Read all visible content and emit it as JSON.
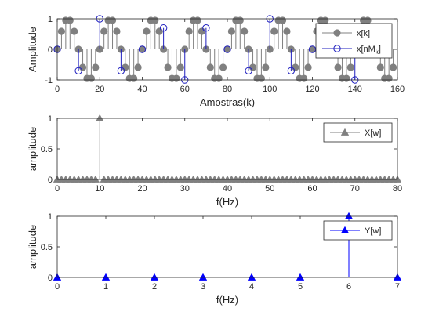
{
  "figure": {
    "background": "#ffffff",
    "axes_background": "#ffffff"
  },
  "chart_data": [
    {
      "type": "stem",
      "xlabel": "Amostras(k)",
      "ylabel": "Amplitude",
      "xlim": [
        0,
        160
      ],
      "ylim": [
        -1,
        1
      ],
      "xticks": [
        0,
        20,
        40,
        60,
        80,
        100,
        120,
        140,
        160
      ],
      "yticks": [
        -1,
        0,
        1
      ],
      "legend": {
        "position": "top-right",
        "entries": [
          {
            "label": "x[k]",
            "series": "x"
          },
          {
            "label": "x[nM",
            "sub": "k",
            "suffix": "]",
            "series": "xd"
          }
        ]
      },
      "series": [
        {
          "key": "x",
          "color": "#808080",
          "marker": "filled-circle",
          "x": [
            0,
            2,
            4,
            6,
            8,
            10,
            12,
            14,
            16,
            18,
            20,
            22,
            24,
            26,
            28,
            30,
            32,
            34,
            36,
            38,
            40,
            42,
            44,
            46,
            48,
            50,
            52,
            54,
            56,
            58,
            60,
            62,
            64,
            66,
            68,
            70,
            72,
            74,
            76,
            78,
            80,
            82,
            84,
            86,
            88,
            90,
            92,
            94,
            96,
            98,
            100,
            102,
            104,
            106,
            108,
            110,
            112,
            114,
            116,
            118,
            120,
            122,
            124,
            126,
            128,
            130,
            132,
            134,
            136,
            138,
            140,
            142,
            144,
            146,
            148,
            150,
            152,
            154,
            156,
            158
          ],
          "y": [
            0,
            0.59,
            0.95,
            0.95,
            0.59,
            0,
            -0.59,
            -0.95,
            -0.95,
            -0.59,
            0,
            0.59,
            0.95,
            0.95,
            0.59,
            0,
            -0.59,
            -0.95,
            -0.95,
            -0.59,
            0,
            0.59,
            0.95,
            0.95,
            0.59,
            0,
            -0.59,
            -0.95,
            -0.95,
            -0.59,
            0,
            0.59,
            0.95,
            0.95,
            0.59,
            0,
            -0.59,
            -0.95,
            -0.95,
            -0.59,
            0,
            0.59,
            0.95,
            0.95,
            0.59,
            0,
            -0.59,
            -0.95,
            -0.95,
            -0.59,
            0,
            0.59,
            0.95,
            0.95,
            0.59,
            0,
            -0.59,
            -0.95,
            -0.95,
            -0.59,
            0,
            0.59,
            0.95,
            0.95,
            0.59,
            0,
            -0.59,
            -0.95,
            -0.95,
            -0.59,
            0,
            0.59,
            0.95,
            0.95,
            0.59,
            0,
            -0.59,
            -0.95,
            -0.95,
            -0.59
          ]
        },
        {
          "key": "xd",
          "color": "#1f1fbf",
          "marker": "open-circle",
          "x": [
            0,
            10,
            20,
            30,
            40,
            50,
            60,
            70,
            80,
            90,
            100,
            110,
            120,
            130,
            140,
            150
          ],
          "y": [
            0,
            -0.7,
            1,
            -0.7,
            0,
            0.7,
            -1,
            0.7,
            0,
            -0.7,
            1,
            -0.7,
            0,
            0.7,
            -1,
            0.7
          ]
        }
      ]
    },
    {
      "type": "stem",
      "xlabel": "f(Hz)",
      "ylabel": "amplitude",
      "xlim": [
        0,
        80
      ],
      "ylim": [
        0,
        1
      ],
      "xticks": [
        0,
        10,
        20,
        30,
        40,
        50,
        60,
        70,
        80
      ],
      "yticks": [
        0,
        0.5,
        1
      ],
      "legend": {
        "position": "top-right",
        "entries": [
          {
            "label": "X[w]",
            "series": "X"
          }
        ]
      },
      "series": [
        {
          "key": "X",
          "color": "#808080",
          "marker": "filled-triangle",
          "x": [
            0,
            1,
            2,
            3,
            4,
            5,
            6,
            7,
            8,
            9,
            10,
            11,
            12,
            13,
            14,
            15,
            16,
            17,
            18,
            19,
            20,
            21,
            22,
            23,
            24,
            25,
            26,
            27,
            28,
            29,
            30,
            31,
            32,
            33,
            34,
            35,
            36,
            37,
            38,
            39,
            40,
            41,
            42,
            43,
            44,
            45,
            46,
            47,
            48,
            49,
            50,
            51,
            52,
            53,
            54,
            55,
            56,
            57,
            58,
            59,
            60,
            61,
            62,
            63,
            64,
            65,
            66,
            67,
            68,
            69,
            70,
            71,
            72,
            73,
            74,
            75,
            76,
            77,
            78,
            79,
            80
          ],
          "y": [
            0,
            0,
            0,
            0,
            0,
            0,
            0,
            0,
            0,
            0,
            1,
            0,
            0,
            0,
            0,
            0,
            0,
            0,
            0,
            0,
            0,
            0,
            0,
            0,
            0,
            0,
            0,
            0,
            0,
            0,
            0,
            0,
            0,
            0,
            0,
            0,
            0,
            0,
            0,
            0,
            0,
            0,
            0,
            0,
            0,
            0,
            0,
            0,
            0,
            0,
            0,
            0,
            0,
            0,
            0,
            0,
            0,
            0,
            0,
            0,
            0,
            0,
            0,
            0,
            0,
            0,
            0,
            0,
            0,
            0,
            0,
            0,
            0,
            0,
            0,
            0,
            0,
            0,
            0,
            0,
            0
          ]
        }
      ]
    },
    {
      "type": "stem",
      "xlabel": "f(Hz)",
      "ylabel": "amplitude",
      "xlim": [
        0,
        7
      ],
      "ylim": [
        0,
        1
      ],
      "xticks": [
        0,
        1,
        2,
        3,
        4,
        5,
        6,
        7
      ],
      "yticks": [
        0,
        0.5,
        1
      ],
      "legend": {
        "position": "top-right",
        "entries": [
          {
            "label": "Y[w]",
            "series": "Y"
          }
        ]
      },
      "series": [
        {
          "key": "Y",
          "color": "#0000ff",
          "marker": "filled-triangle",
          "x": [
            0,
            1,
            2,
            3,
            4,
            5,
            6,
            7
          ],
          "y": [
            0,
            0,
            0,
            0,
            0,
            0,
            1,
            0
          ]
        }
      ]
    }
  ]
}
